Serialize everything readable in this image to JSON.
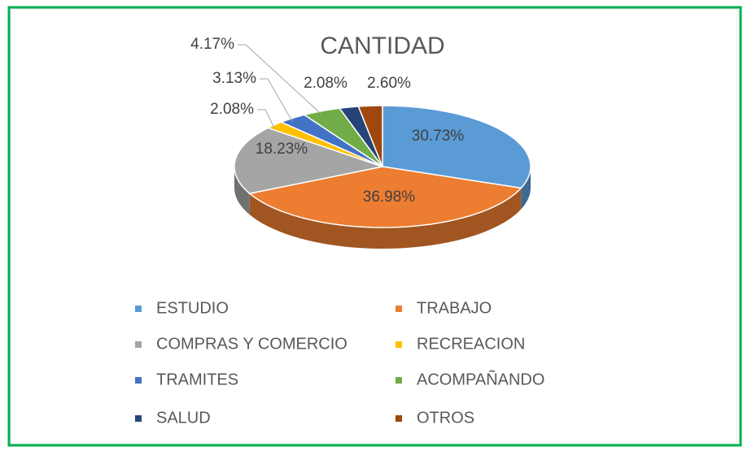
{
  "chart_data": {
    "type": "pie3d",
    "title": "CANTIDAD",
    "categories": [
      "ESTUDIO",
      "TRABAJO",
      "COMPRAS Y COMERCIO",
      "RECREACION",
      "TRAMITES",
      "ACOMPAÑANDO",
      "SALUD",
      "OTROS"
    ],
    "values": [
      30.73,
      36.98,
      18.23,
      2.08,
      3.13,
      4.17,
      2.08,
      2.6
    ],
    "value_labels": [
      "30.73%",
      "36.98%",
      "18.23%",
      "2.08%",
      "3.13%",
      "4.17%",
      "2.08%",
      "2.60%"
    ],
    "colors": [
      "#5b9bd5",
      "#ed7d31",
      "#a5a5a5",
      "#ffc000",
      "#4472c4",
      "#70ad47",
      "#264478",
      "#9e480e"
    ],
    "legend": "bottom"
  }
}
